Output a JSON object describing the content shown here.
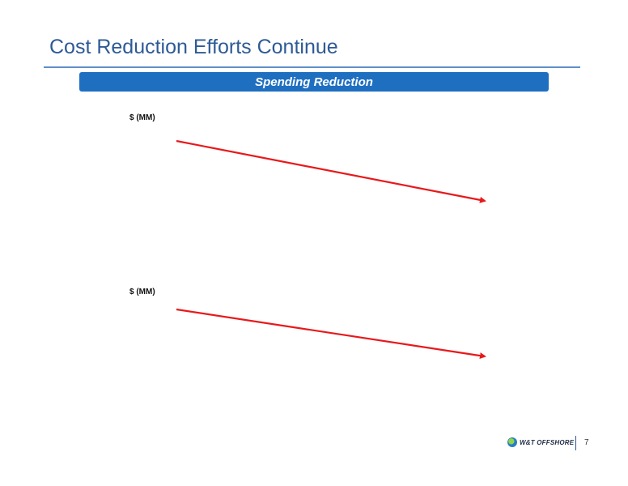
{
  "slide": {
    "title": "Cost Reduction Efforts Continue",
    "section_banner": "Spending Reduction",
    "banner_color": "#1f6fc1",
    "title_color": "#2e5a96"
  },
  "charts": {
    "top": {
      "unit_label": "$ (MM)"
    },
    "bottom": {
      "unit_label": "$ (MM)"
    },
    "arrow_color": "#e8191b",
    "arrow_icon": "trend-down-arrow-icon"
  },
  "footer": {
    "logo_text": "W&T OFFSHORE",
    "logo_icon": "company-logo-icon",
    "page_number": "7"
  }
}
